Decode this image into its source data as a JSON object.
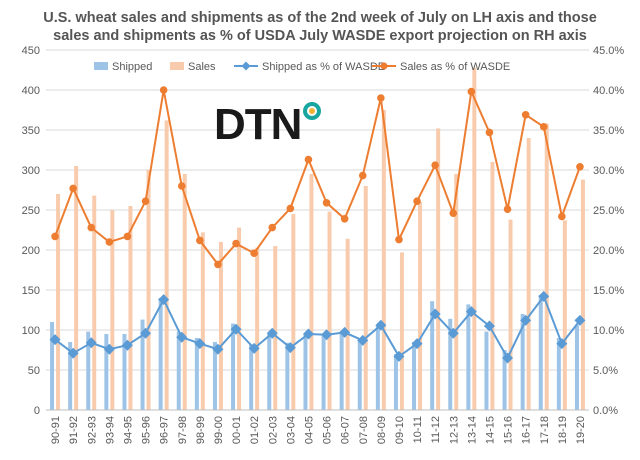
{
  "title_line1": "U.S. wheat sales and shipments as of the 2nd week of July on LH axis and those",
  "title_line2": "sales and shipments as % of USDA  July WASDE  export projection on RH axis",
  "logo_text": "DTN",
  "colors": {
    "shipped": "#9dc3e6",
    "sales": "#f8cbad",
    "shipped_pct": "#5b9bd5",
    "sales_pct": "#ed7d31",
    "logo_dot_outer": "#1aa6a0",
    "logo_dot_inner": "#f2b233"
  },
  "chart_data": {
    "type": "bar",
    "categories": [
      "90-91",
      "91-92",
      "92-93",
      "93-94",
      "94-95",
      "95-96",
      "96-97",
      "97-98",
      "98-99",
      "99-00",
      "00-01",
      "01-02",
      "02-03",
      "03-04",
      "04-05",
      "05-06",
      "06-07",
      "07-08",
      "08-09",
      "09-10",
      "10-11",
      "11-12",
      "12-13",
      "13-14",
      "14-15",
      "15-16",
      "16-17",
      "17-18",
      "18-19",
      "19-20"
    ],
    "series": [
      {
        "name": "Shipped",
        "axis": "left",
        "kind": "bar",
        "values": [
          110,
          85,
          98,
          95,
          95,
          113,
          140,
          98,
          90,
          85,
          108,
          82,
          96,
          84,
          95,
          93,
          96,
          90,
          105,
          70,
          85,
          136,
          114,
          132,
          98,
          75,
          120,
          144,
          90,
          106
        ]
      },
      {
        "name": "Sales",
        "axis": "left",
        "kind": "bar",
        "values": [
          270,
          305,
          268,
          250,
          255,
          300,
          362,
          295,
          222,
          210,
          228,
          203,
          205,
          245,
          295,
          248,
          214,
          280,
          375,
          197,
          260,
          352,
          295,
          428,
          310,
          238,
          340,
          358,
          237,
          288
        ]
      },
      {
        "name": "Shipped as % of WASDE",
        "axis": "right",
        "kind": "line",
        "values": [
          8.8,
          7.1,
          8.4,
          7.6,
          8.1,
          9.6,
          13.8,
          9.1,
          8.3,
          7.6,
          10.1,
          7.7,
          9.6,
          7.8,
          9.5,
          9.4,
          9.7,
          8.7,
          10.6,
          6.7,
          8.3,
          12.0,
          9.6,
          12.3,
          10.5,
          6.5,
          11.2,
          14.2,
          8.3,
          11.2
        ]
      },
      {
        "name": "Sales as % of WASDE",
        "axis": "right",
        "kind": "line",
        "values": [
          21.7,
          27.7,
          22.8,
          21.0,
          21.7,
          26.1,
          40.0,
          28.0,
          21.2,
          18.2,
          20.8,
          19.6,
          22.8,
          25.2,
          31.3,
          25.9,
          23.9,
          29.3,
          39.0,
          21.3,
          26.1,
          30.6,
          24.6,
          39.8,
          34.7,
          25.1,
          36.9,
          35.4,
          24.2,
          30.4
        ]
      }
    ],
    "y_left": {
      "min": 0,
      "max": 450,
      "ticks": [
        "0",
        "50",
        "100",
        "150",
        "200",
        "250",
        "300",
        "350",
        "400",
        "450"
      ]
    },
    "y_right": {
      "min": 0,
      "max": 45,
      "ticks": [
        "0.0%",
        "5.0%",
        "10.0%",
        "15.0%",
        "20.0%",
        "25.0%",
        "30.0%",
        "35.0%",
        "40.0%",
        "45.0%"
      ]
    },
    "legend_position": "top",
    "gridlines": true
  }
}
